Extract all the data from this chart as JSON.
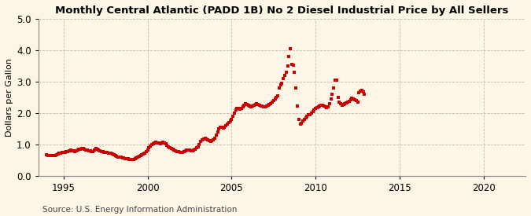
{
  "title": "Monthly Central Atlantic (PADD 1B) No 2 Diesel Industrial Price by All Sellers",
  "ylabel": "Dollars per Gallon",
  "source": "Source: U.S. Energy Information Administration",
  "ylim": [
    0.0,
    5.0
  ],
  "xlim": [
    1993.5,
    2022.5
  ],
  "yticks": [
    0.0,
    1.0,
    2.0,
    3.0,
    4.0,
    5.0
  ],
  "xticks": [
    1995,
    2000,
    2005,
    2010,
    2015,
    2020
  ],
  "background_color": "#fdf5e6",
  "plot_bg_color": "#fdf5e6",
  "marker_color": "#cc0000",
  "marker": "s",
  "markersize": 2.8,
  "data": [
    [
      1994.0,
      0.67
    ],
    [
      1994.083,
      0.66
    ],
    [
      1994.167,
      0.65
    ],
    [
      1994.25,
      0.65
    ],
    [
      1994.333,
      0.64
    ],
    [
      1994.417,
      0.65
    ],
    [
      1994.5,
      0.66
    ],
    [
      1994.583,
      0.68
    ],
    [
      1994.667,
      0.7
    ],
    [
      1994.75,
      0.72
    ],
    [
      1994.833,
      0.73
    ],
    [
      1994.917,
      0.74
    ],
    [
      1995.0,
      0.75
    ],
    [
      1995.083,
      0.76
    ],
    [
      1995.167,
      0.77
    ],
    [
      1995.25,
      0.78
    ],
    [
      1995.333,
      0.8
    ],
    [
      1995.417,
      0.82
    ],
    [
      1995.5,
      0.8
    ],
    [
      1995.583,
      0.79
    ],
    [
      1995.667,
      0.78
    ],
    [
      1995.75,
      0.8
    ],
    [
      1995.833,
      0.82
    ],
    [
      1995.917,
      0.84
    ],
    [
      1996.0,
      0.85
    ],
    [
      1996.083,
      0.88
    ],
    [
      1996.167,
      0.87
    ],
    [
      1996.25,
      0.85
    ],
    [
      1996.333,
      0.83
    ],
    [
      1996.417,
      0.82
    ],
    [
      1996.5,
      0.8
    ],
    [
      1996.583,
      0.79
    ],
    [
      1996.667,
      0.77
    ],
    [
      1996.75,
      0.78
    ],
    [
      1996.833,
      0.82
    ],
    [
      1996.917,
      0.88
    ],
    [
      1997.0,
      0.85
    ],
    [
      1997.083,
      0.82
    ],
    [
      1997.167,
      0.8
    ],
    [
      1997.25,
      0.78
    ],
    [
      1997.333,
      0.77
    ],
    [
      1997.417,
      0.76
    ],
    [
      1997.5,
      0.75
    ],
    [
      1997.583,
      0.74
    ],
    [
      1997.667,
      0.73
    ],
    [
      1997.75,
      0.73
    ],
    [
      1997.833,
      0.72
    ],
    [
      1997.917,
      0.71
    ],
    [
      1998.0,
      0.68
    ],
    [
      1998.083,
      0.65
    ],
    [
      1998.167,
      0.63
    ],
    [
      1998.25,
      0.61
    ],
    [
      1998.333,
      0.6
    ],
    [
      1998.417,
      0.59
    ],
    [
      1998.5,
      0.58
    ],
    [
      1998.583,
      0.57
    ],
    [
      1998.667,
      0.56
    ],
    [
      1998.75,
      0.55
    ],
    [
      1998.833,
      0.54
    ],
    [
      1998.917,
      0.53
    ],
    [
      1999.0,
      0.52
    ],
    [
      1999.083,
      0.52
    ],
    [
      1999.167,
      0.53
    ],
    [
      1999.25,
      0.56
    ],
    [
      1999.333,
      0.58
    ],
    [
      1999.417,
      0.6
    ],
    [
      1999.5,
      0.62
    ],
    [
      1999.583,
      0.65
    ],
    [
      1999.667,
      0.67
    ],
    [
      1999.75,
      0.7
    ],
    [
      1999.833,
      0.73
    ],
    [
      1999.917,
      0.78
    ],
    [
      2000.0,
      0.83
    ],
    [
      2000.083,
      0.9
    ],
    [
      2000.167,
      0.95
    ],
    [
      2000.25,
      1.0
    ],
    [
      2000.333,
      1.03
    ],
    [
      2000.417,
      1.05
    ],
    [
      2000.5,
      1.07
    ],
    [
      2000.583,
      1.06
    ],
    [
      2000.667,
      1.04
    ],
    [
      2000.75,
      1.03
    ],
    [
      2000.833,
      1.05
    ],
    [
      2000.917,
      1.08
    ],
    [
      2001.0,
      1.06
    ],
    [
      2001.083,
      1.03
    ],
    [
      2001.167,
      0.98
    ],
    [
      2001.25,
      0.93
    ],
    [
      2001.333,
      0.9
    ],
    [
      2001.417,
      0.88
    ],
    [
      2001.5,
      0.86
    ],
    [
      2001.583,
      0.83
    ],
    [
      2001.667,
      0.8
    ],
    [
      2001.75,
      0.78
    ],
    [
      2001.833,
      0.77
    ],
    [
      2001.917,
      0.76
    ],
    [
      2002.0,
      0.75
    ],
    [
      2002.083,
      0.76
    ],
    [
      2002.167,
      0.78
    ],
    [
      2002.25,
      0.8
    ],
    [
      2002.333,
      0.82
    ],
    [
      2002.417,
      0.83
    ],
    [
      2002.5,
      0.82
    ],
    [
      2002.583,
      0.81
    ],
    [
      2002.667,
      0.8
    ],
    [
      2002.75,
      0.82
    ],
    [
      2002.833,
      0.86
    ],
    [
      2002.917,
      0.9
    ],
    [
      2003.0,
      0.93
    ],
    [
      2003.083,
      1.0
    ],
    [
      2003.167,
      1.1
    ],
    [
      2003.25,
      1.15
    ],
    [
      2003.333,
      1.18
    ],
    [
      2003.417,
      1.2
    ],
    [
      2003.5,
      1.18
    ],
    [
      2003.583,
      1.15
    ],
    [
      2003.667,
      1.12
    ],
    [
      2003.75,
      1.1
    ],
    [
      2003.833,
      1.12
    ],
    [
      2003.917,
      1.15
    ],
    [
      2004.0,
      1.2
    ],
    [
      2004.083,
      1.3
    ],
    [
      2004.167,
      1.4
    ],
    [
      2004.25,
      1.5
    ],
    [
      2004.333,
      1.55
    ],
    [
      2004.417,
      1.55
    ],
    [
      2004.5,
      1.52
    ],
    [
      2004.583,
      1.55
    ],
    [
      2004.667,
      1.6
    ],
    [
      2004.75,
      1.65
    ],
    [
      2004.833,
      1.7
    ],
    [
      2004.917,
      1.75
    ],
    [
      2005.0,
      1.8
    ],
    [
      2005.083,
      1.9
    ],
    [
      2005.167,
      2.0
    ],
    [
      2005.25,
      2.1
    ],
    [
      2005.333,
      2.15
    ],
    [
      2005.417,
      2.15
    ],
    [
      2005.5,
      2.12
    ],
    [
      2005.583,
      2.15
    ],
    [
      2005.667,
      2.2
    ],
    [
      2005.75,
      2.25
    ],
    [
      2005.833,
      2.3
    ],
    [
      2005.917,
      2.28
    ],
    [
      2006.0,
      2.25
    ],
    [
      2006.083,
      2.22
    ],
    [
      2006.167,
      2.2
    ],
    [
      2006.25,
      2.22
    ],
    [
      2006.333,
      2.25
    ],
    [
      2006.417,
      2.28
    ],
    [
      2006.5,
      2.3
    ],
    [
      2006.583,
      2.28
    ],
    [
      2006.667,
      2.25
    ],
    [
      2006.75,
      2.23
    ],
    [
      2006.833,
      2.22
    ],
    [
      2006.917,
      2.2
    ],
    [
      2007.0,
      2.2
    ],
    [
      2007.083,
      2.22
    ],
    [
      2007.167,
      2.25
    ],
    [
      2007.25,
      2.28
    ],
    [
      2007.333,
      2.3
    ],
    [
      2007.417,
      2.35
    ],
    [
      2007.5,
      2.4
    ],
    [
      2007.583,
      2.45
    ],
    [
      2007.667,
      2.5
    ],
    [
      2007.75,
      2.55
    ],
    [
      2007.833,
      2.8
    ],
    [
      2007.917,
      2.9
    ],
    [
      2008.0,
      2.95
    ],
    [
      2008.083,
      3.1
    ],
    [
      2008.167,
      3.2
    ],
    [
      2008.25,
      3.3
    ],
    [
      2008.333,
      3.5
    ],
    [
      2008.417,
      3.8
    ],
    [
      2008.5,
      4.05
    ],
    [
      2008.583,
      3.55
    ],
    [
      2008.667,
      3.52
    ],
    [
      2008.75,
      3.3
    ],
    [
      2008.833,
      2.8
    ],
    [
      2008.917,
      2.22
    ],
    [
      2009.0,
      1.8
    ],
    [
      2009.083,
      1.65
    ],
    [
      2009.167,
      1.68
    ],
    [
      2009.25,
      1.75
    ],
    [
      2009.333,
      1.8
    ],
    [
      2009.417,
      1.85
    ],
    [
      2009.5,
      1.9
    ],
    [
      2009.583,
      1.95
    ],
    [
      2009.667,
      1.95
    ],
    [
      2009.75,
      2.0
    ],
    [
      2009.833,
      2.05
    ],
    [
      2009.917,
      2.1
    ],
    [
      2010.0,
      2.15
    ],
    [
      2010.083,
      2.18
    ],
    [
      2010.167,
      2.2
    ],
    [
      2010.25,
      2.22
    ],
    [
      2010.333,
      2.25
    ],
    [
      2010.417,
      2.25
    ],
    [
      2010.5,
      2.22
    ],
    [
      2010.583,
      2.2
    ],
    [
      2010.667,
      2.18
    ],
    [
      2010.75,
      2.2
    ],
    [
      2010.833,
      2.3
    ],
    [
      2010.917,
      2.45
    ],
    [
      2011.0,
      2.6
    ],
    [
      2011.083,
      2.8
    ],
    [
      2011.167,
      3.05
    ],
    [
      2011.25,
      3.05
    ],
    [
      2011.333,
      2.5
    ],
    [
      2011.417,
      2.35
    ],
    [
      2011.5,
      2.3
    ],
    [
      2011.583,
      2.25
    ],
    [
      2011.667,
      2.28
    ],
    [
      2011.75,
      2.3
    ],
    [
      2011.833,
      2.32
    ],
    [
      2011.917,
      2.35
    ],
    [
      2012.0,
      2.38
    ],
    [
      2012.083,
      2.42
    ],
    [
      2012.167,
      2.48
    ],
    [
      2012.25,
      2.45
    ],
    [
      2012.333,
      2.42
    ],
    [
      2012.417,
      2.4
    ],
    [
      2012.5,
      2.35
    ],
    [
      2012.583,
      2.65
    ],
    [
      2012.667,
      2.7
    ],
    [
      2012.75,
      2.72
    ],
    [
      2012.833,
      2.68
    ],
    [
      2012.917,
      2.6
    ]
  ]
}
